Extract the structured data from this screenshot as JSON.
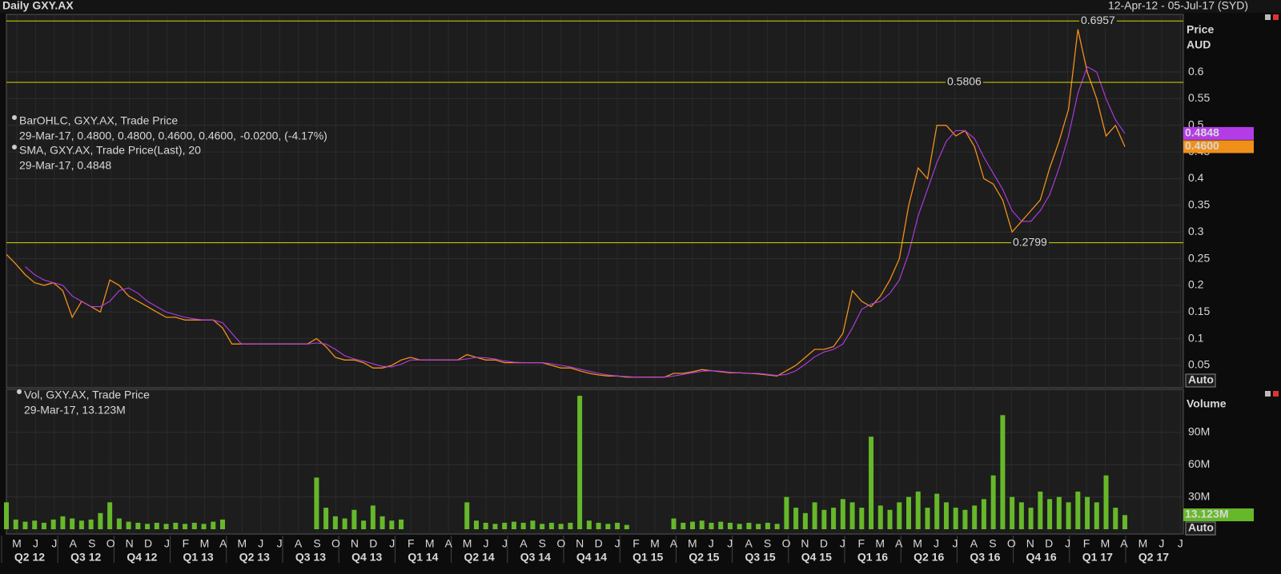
{
  "header": {
    "title": "Daily GXY.AX",
    "range": "12-Apr-12 - 05-Jul-17 (SYD)"
  },
  "x_axis": {
    "months": [
      "M",
      "J",
      "J",
      "A",
      "S",
      "O",
      "N",
      "D",
      "J",
      "F",
      "M",
      "A",
      "M",
      "J",
      "J",
      "A",
      "S",
      "O",
      "N",
      "D",
      "J",
      "F",
      "M",
      "A",
      "M",
      "J",
      "J",
      "A",
      "S",
      "O",
      "N",
      "D",
      "J",
      "F",
      "M",
      "A",
      "M",
      "J",
      "J",
      "A",
      "S",
      "O",
      "N",
      "D",
      "J",
      "F",
      "M",
      "A",
      "M",
      "J",
      "J",
      "A",
      "S",
      "O",
      "N",
      "D",
      "J",
      "F",
      "M",
      "A",
      "M",
      "J",
      "J"
    ],
    "quarters": [
      "Q2 12",
      "Q3 12",
      "Q4 12",
      "Q1 13",
      "Q2 13",
      "Q3 13",
      "Q4 13",
      "Q1 14",
      "Q2 14",
      "Q3 14",
      "Q4 14",
      "Q1 15",
      "Q2 15",
      "Q3 15",
      "Q4 15",
      "Q1 16",
      "Q2 16",
      "Q3 16",
      "Q4 16",
      "Q1 17",
      "Q2 17"
    ]
  },
  "chart_data": [
    {
      "type": "line",
      "axis_title": "Price",
      "axis_unit": "AUD",
      "scale_mode": "Auto",
      "ylim": [
        0.008,
        0.708
      ],
      "yticks": [
        0.05,
        0.1,
        0.15,
        0.2,
        0.25,
        0.3,
        0.35,
        0.4,
        0.45,
        0.5,
        0.55,
        0.6
      ],
      "levels": [
        0.6957,
        0.5806,
        0.2799
      ],
      "level_color": "#d6d600",
      "series": [
        {
          "name": "BarOHLC, GXY.AX, Trade Price",
          "color": "#f0901a",
          "detail": "29-Mar-17, 0.4800, 0.4800, 0.4600, 0.4600,",
          "change": "-0.0200, (-4.17%)",
          "last_label": "0.4600",
          "values": [
            0.258,
            0.24,
            0.22,
            0.205,
            0.2,
            0.205,
            0.19,
            0.14,
            0.17,
            0.16,
            0.15,
            0.21,
            0.2,
            0.18,
            0.17,
            0.16,
            0.15,
            0.14,
            0.14,
            0.135,
            0.135,
            0.135,
            0.135,
            0.12,
            0.09,
            0.09,
            0.09,
            0.09,
            0.09,
            0.09,
            0.09,
            0.09,
            0.09,
            0.1,
            0.085,
            0.065,
            0.06,
            0.06,
            0.055,
            0.045,
            0.045,
            0.05,
            0.06,
            0.065,
            0.06,
            0.06,
            0.06,
            0.06,
            0.06,
            0.07,
            0.065,
            0.06,
            0.06,
            0.055,
            0.055,
            0.055,
            0.055,
            0.055,
            0.05,
            0.045,
            0.045,
            0.04,
            0.035,
            0.032,
            0.03,
            0.03,
            0.028,
            0.028,
            0.028,
            0.028,
            0.028,
            0.035,
            0.035,
            0.038,
            0.042,
            0.04,
            0.038,
            0.036,
            0.036,
            0.035,
            0.034,
            0.032,
            0.03,
            0.04,
            0.05,
            0.065,
            0.08,
            0.08,
            0.085,
            0.11,
            0.19,
            0.17,
            0.16,
            0.18,
            0.21,
            0.25,
            0.35,
            0.42,
            0.4,
            0.5,
            0.5,
            0.48,
            0.49,
            0.46,
            0.4,
            0.39,
            0.36,
            0.3,
            0.32,
            0.34,
            0.36,
            0.42,
            0.47,
            0.53,
            0.68,
            0.6,
            0.55,
            0.48,
            0.5,
            0.46
          ]
        },
        {
          "name": "SMA, GXY.AX, Trade Price(Last),  20",
          "color": "#b43ce6",
          "detail": "29-Mar-17, 0.4848",
          "last_label": "0.4848",
          "values": [
            null,
            null,
            0.235,
            0.22,
            0.21,
            0.205,
            0.2,
            0.18,
            0.17,
            0.16,
            0.16,
            0.17,
            0.19,
            0.195,
            0.185,
            0.17,
            0.16,
            0.15,
            0.145,
            0.14,
            0.137,
            0.135,
            0.135,
            0.13,
            0.11,
            0.09,
            0.09,
            0.09,
            0.09,
            0.09,
            0.09,
            0.09,
            0.09,
            0.092,
            0.09,
            0.08,
            0.068,
            0.062,
            0.058,
            0.053,
            0.048,
            0.047,
            0.052,
            0.06,
            0.06,
            0.06,
            0.06,
            0.06,
            0.06,
            0.062,
            0.065,
            0.064,
            0.062,
            0.058,
            0.056,
            0.055,
            0.055,
            0.055,
            0.053,
            0.05,
            0.047,
            0.043,
            0.039,
            0.035,
            0.032,
            0.03,
            0.029,
            0.028,
            0.028,
            0.028,
            0.028,
            0.03,
            0.033,
            0.036,
            0.039,
            0.04,
            0.039,
            0.037,
            0.036,
            0.035,
            0.035,
            0.033,
            0.031,
            0.033,
            0.04,
            0.052,
            0.066,
            0.075,
            0.08,
            0.09,
            0.12,
            0.155,
            0.165,
            0.17,
            0.185,
            0.21,
            0.26,
            0.33,
            0.38,
            0.43,
            0.47,
            0.49,
            0.49,
            0.475,
            0.44,
            0.41,
            0.38,
            0.34,
            0.32,
            0.32,
            0.34,
            0.37,
            0.42,
            0.48,
            0.56,
            0.61,
            0.6,
            0.55,
            0.51,
            0.4848
          ]
        }
      ]
    },
    {
      "type": "bar",
      "axis_title": "Volume",
      "scale_mode": "Auto",
      "ylim": [
        0,
        130000000
      ],
      "yticks": [
        {
          "value": 30000000,
          "label": "30M"
        },
        {
          "value": 60000000,
          "label": "60M"
        },
        {
          "value": 90000000,
          "label": "90M"
        }
      ],
      "series": [
        {
          "name": "Vol, GXY.AX, Trade Price",
          "color": "#66b82a",
          "detail": "29-Mar-17, 13.123M",
          "last_label": "13.123M",
          "values": [
            25000000,
            9000000,
            7000000,
            8000000,
            6000000,
            9000000,
            12000000,
            10000000,
            8000000,
            9000000,
            15000000,
            25000000,
            10000000,
            7000000,
            6000000,
            5000000,
            6000000,
            5000000,
            6000000,
            5000000,
            6000000,
            5000000,
            7000000,
            9000000,
            0,
            0,
            0,
            0,
            0,
            0,
            0,
            0,
            0,
            48000000,
            20000000,
            12000000,
            10000000,
            18000000,
            8000000,
            22000000,
            12000000,
            8000000,
            9000000,
            0,
            0,
            0,
            0,
            0,
            0,
            25000000,
            8000000,
            6000000,
            5000000,
            6000000,
            7000000,
            6000000,
            8000000,
            5000000,
            6000000,
            5000000,
            6000000,
            124000000,
            8000000,
            6000000,
            5000000,
            6000000,
            4000000,
            0,
            0,
            0,
            0,
            10000000,
            6000000,
            7000000,
            8000000,
            6000000,
            7000000,
            6000000,
            5000000,
            6000000,
            5000000,
            6000000,
            5000000,
            30000000,
            20000000,
            15000000,
            25000000,
            18000000,
            20000000,
            28000000,
            25000000,
            20000000,
            86000000,
            22000000,
            18000000,
            25000000,
            30000000,
            35000000,
            20000000,
            33000000,
            25000000,
            20000000,
            18000000,
            22000000,
            28000000,
            50000000,
            106000000,
            30000000,
            25000000,
            20000000,
            35000000,
            28000000,
            30000000,
            25000000,
            35000000,
            30000000,
            25000000,
            50000000,
            20000000,
            13123000
          ]
        }
      ]
    }
  ]
}
